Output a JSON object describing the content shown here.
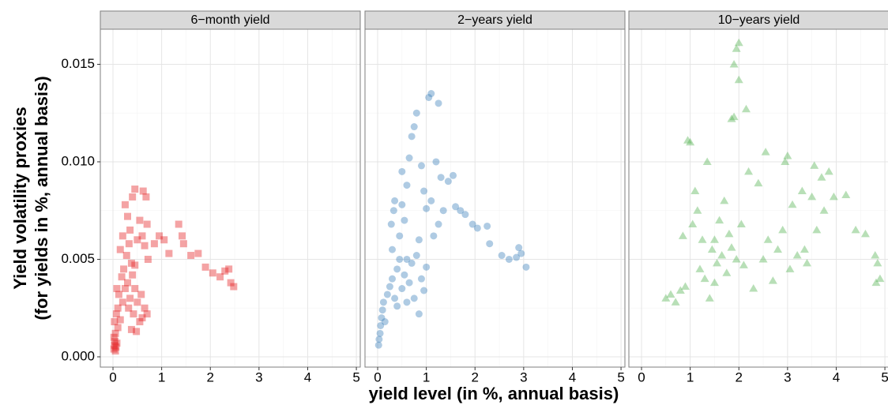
{
  "chart_data": {
    "type": "scatter",
    "xlabel": "yield level (in %, annual basis)",
    "ylabel": [
      "Yield volatility proxies",
      "(for yields in %, annual basis)"
    ],
    "xlim": [
      -0.26,
      5.08
    ],
    "ylim": [
      -0.000527,
      0.0168
    ],
    "xticks": [
      0,
      1,
      2,
      3,
      4,
      5
    ],
    "xminor": [
      0.5,
      1.5,
      2.5,
      3.5,
      4.5
    ],
    "yticks": [
      {
        "value": 0,
        "label": "0.000"
      },
      {
        "value": 0.005,
        "label": "0.005"
      },
      {
        "value": 0.01,
        "label": "0.010"
      },
      {
        "value": 0.015,
        "label": "0.015"
      }
    ],
    "yminor": [
      0.0025,
      0.0075,
      0.0125
    ],
    "grid": true,
    "opacity": 0.4,
    "panels": [
      {
        "title": "6−month yield",
        "color": "#e41a1c",
        "marker": "square",
        "x": [
          0.02,
          0.03,
          0.05,
          0.04,
          0.06,
          0.02,
          0.08,
          0.05,
          0.1,
          0.03,
          0.07,
          0.1,
          0.15,
          0.2,
          0.12,
          0.25,
          0.18,
          0.3,
          0.22,
          0.35,
          0.4,
          0.28,
          0.33,
          0.38,
          0.45,
          0.5,
          0.42,
          0.55,
          0.48,
          0.6,
          0.65,
          0.7,
          0.58,
          0.35,
          0.3,
          0.25,
          0.4,
          0.45,
          0.62,
          0.68,
          0.55,
          0.6,
          0.5,
          0.7,
          0.65,
          0.72,
          0.85,
          0.95,
          1.05,
          1.15,
          1.35,
          1.42,
          1.45,
          1.6,
          1.75,
          1.9,
          2.05,
          2.2,
          2.3,
          2.38,
          2.42,
          2.48,
          0.15,
          0.2,
          0.08,
          0.32,
          0.38,
          0.45
        ],
        "y": [
          0.0004,
          0.0006,
          0.0003,
          0.0008,
          0.0005,
          0.001,
          0.0007,
          0.0012,
          0.0015,
          0.0018,
          0.0022,
          0.0025,
          0.0019,
          0.0028,
          0.0032,
          0.0035,
          0.0041,
          0.0038,
          0.0045,
          0.003,
          0.0042,
          0.0052,
          0.0058,
          0.0048,
          0.0035,
          0.0028,
          0.0022,
          0.0018,
          0.0013,
          0.002,
          0.0025,
          0.0022,
          0.0032,
          0.0065,
          0.0072,
          0.0078,
          0.0082,
          0.0086,
          0.0085,
          0.0082,
          0.007,
          0.0062,
          0.006,
          0.0068,
          0.0057,
          0.005,
          0.0058,
          0.0062,
          0.006,
          0.0053,
          0.0068,
          0.0062,
          0.0058,
          0.0052,
          0.0053,
          0.0046,
          0.0043,
          0.0041,
          0.0044,
          0.0045,
          0.0038,
          0.0036,
          0.0055,
          0.0062,
          0.0035,
          0.0025,
          0.0014,
          0.0047
        ]
      },
      {
        "title": "2−years yield",
        "color": "#377eb8",
        "marker": "circle",
        "x": [
          0.02,
          0.03,
          0.05,
          0.06,
          0.08,
          0.1,
          0.12,
          0.15,
          0.2,
          0.25,
          0.3,
          0.35,
          0.4,
          0.45,
          0.5,
          0.55,
          0.6,
          0.65,
          0.7,
          0.75,
          0.8,
          0.85,
          0.9,
          0.95,
          1.0,
          0.3,
          0.28,
          0.33,
          0.35,
          0.45,
          0.5,
          0.55,
          0.5,
          0.6,
          0.65,
          0.7,
          0.75,
          0.8,
          0.9,
          0.95,
          1.0,
          1.05,
          1.1,
          1.1,
          1.2,
          1.25,
          1.3,
          1.35,
          1.45,
          1.55,
          1.6,
          1.7,
          1.8,
          1.95,
          2.05,
          2.25,
          2.3,
          2.55,
          2.7,
          2.85,
          2.9,
          2.95,
          3.05,
          1.15,
          1.25,
          0.85,
          0.6,
          0.4
        ],
        "y": [
          0.0006,
          0.0009,
          0.0012,
          0.0016,
          0.002,
          0.0024,
          0.0028,
          0.0018,
          0.0032,
          0.0036,
          0.004,
          0.003,
          0.0045,
          0.005,
          0.0035,
          0.0042,
          0.0028,
          0.0038,
          0.0048,
          0.003,
          0.0052,
          0.0022,
          0.004,
          0.0034,
          0.0046,
          0.0055,
          0.0068,
          0.0075,
          0.008,
          0.0062,
          0.0078,
          0.007,
          0.0095,
          0.0088,
          0.0102,
          0.0113,
          0.0118,
          0.0125,
          0.0098,
          0.0085,
          0.0076,
          0.0133,
          0.0135,
          0.008,
          0.01,
          0.013,
          0.0092,
          0.0075,
          0.009,
          0.0093,
          0.0077,
          0.0075,
          0.0073,
          0.0068,
          0.0066,
          0.0067,
          0.0058,
          0.0052,
          0.005,
          0.0051,
          0.0056,
          0.0053,
          0.0046,
          0.0062,
          0.0068,
          0.006,
          0.005,
          0.0026
        ]
      },
      {
        "title": "10−years yield",
        "color": "#4daf4a",
        "marker": "triangle",
        "x": [
          0.5,
          0.6,
          0.7,
          0.8,
          0.9,
          0.95,
          1.0,
          1.05,
          1.1,
          1.2,
          1.3,
          1.35,
          1.4,
          1.45,
          1.5,
          1.55,
          1.6,
          1.65,
          1.7,
          1.75,
          1.8,
          1.85,
          1.9,
          1.95,
          2.0,
          2.0,
          1.9,
          1.85,
          1.95,
          2.05,
          2.1,
          2.2,
          2.3,
          2.4,
          2.5,
          2.55,
          2.6,
          2.7,
          2.8,
          2.9,
          2.95,
          3.0,
          3.05,
          3.1,
          3.2,
          3.3,
          3.35,
          3.4,
          3.5,
          3.55,
          3.6,
          3.7,
          3.75,
          3.85,
          3.95,
          4.2,
          4.4,
          4.6,
          4.8,
          4.85,
          4.9,
          4.82,
          2.15,
          1.25,
          1.5,
          0.85,
          1.15
        ],
        "y": [
          0.003,
          0.0032,
          0.0028,
          0.0034,
          0.0036,
          0.0111,
          0.011,
          0.0068,
          0.0085,
          0.0045,
          0.004,
          0.01,
          0.003,
          0.0055,
          0.006,
          0.0048,
          0.007,
          0.0052,
          0.008,
          0.0043,
          0.0063,
          0.0122,
          0.015,
          0.0158,
          0.0161,
          0.0142,
          0.0123,
          0.0056,
          0.005,
          0.0068,
          0.0047,
          0.0095,
          0.0035,
          0.0089,
          0.005,
          0.0105,
          0.006,
          0.0039,
          0.0055,
          0.0065,
          0.01,
          0.0103,
          0.0045,
          0.0078,
          0.0052,
          0.0085,
          0.0055,
          0.0048,
          0.0082,
          0.0098,
          0.0065,
          0.0092,
          0.0075,
          0.0095,
          0.0082,
          0.0083,
          0.0065,
          0.0063,
          0.0052,
          0.0048,
          0.004,
          0.0038,
          0.0127,
          0.006,
          0.0038,
          0.0062,
          0.0075
        ]
      }
    ]
  }
}
